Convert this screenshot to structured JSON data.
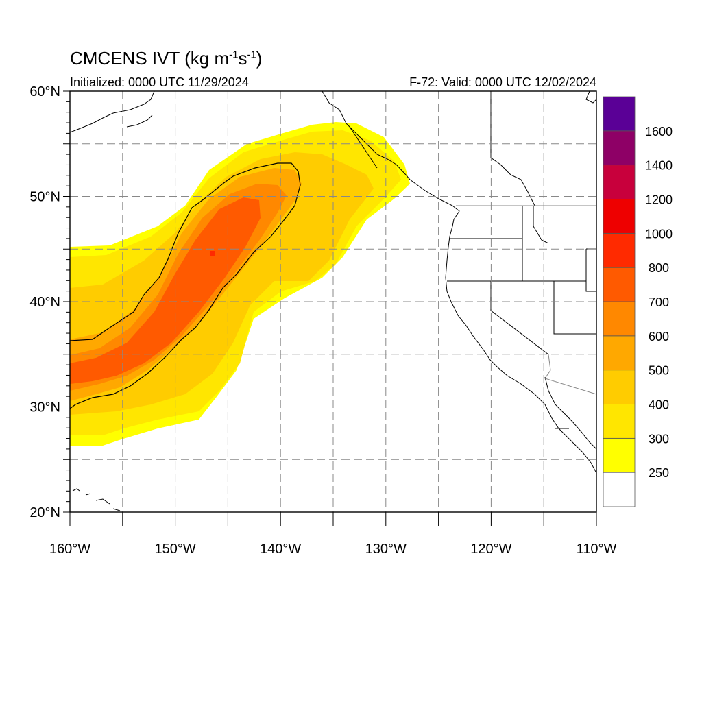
{
  "title": {
    "prefix": "CMCENS IVT (kg m",
    "sup1": "-1",
    "mid": "s",
    "sup2": "-1",
    "suffix": ")"
  },
  "subtitle_left": "Initialized: 0000 UTC 11/29/2024",
  "subtitle_right": "F-72: Valid: 0000 UTC 12/02/2024",
  "map": {
    "lon_range": [
      -160,
      -110
    ],
    "lat_range": [
      20,
      60
    ],
    "lat_ticks": [
      {
        "value": 20,
        "label": "20°N"
      },
      {
        "value": 30,
        "label": "30°N"
      },
      {
        "value": 40,
        "label": "40°N"
      },
      {
        "value": 50,
        "label": "50°N"
      },
      {
        "value": 60,
        "label": "60°N"
      }
    ],
    "lon_ticks": [
      {
        "value": -160,
        "label": "160°W"
      },
      {
        "value": -150,
        "label": "150°W"
      },
      {
        "value": -140,
        "label": "140°W"
      },
      {
        "value": -130,
        "label": "130°W"
      },
      {
        "value": -120,
        "label": "120°W"
      },
      {
        "value": -110,
        "label": "110°W"
      }
    ],
    "grid": "dashed, every 5 degrees"
  },
  "colorbar": {
    "levels": [
      250,
      300,
      400,
      500,
      600,
      700,
      800,
      1000,
      1200,
      1400,
      1600
    ],
    "colors": [
      "#ffffff",
      "#ffff00",
      "#ffe600",
      "#ffcc00",
      "#ffa800",
      "#ff8800",
      "#ff5a00",
      "#ff2a00",
      "#ee0000",
      "#c8003c",
      "#8e0066",
      "#5a0096"
    ]
  },
  "colors": {
    "ivt_250": "#ffff00",
    "ivt_300": "#ffe600",
    "ivt_400": "#ffcc00",
    "ivt_500": "#ffa800",
    "ivt_600": "#ff8800",
    "ivt_700": "#ff5a00",
    "ivt_800": "#ff2a00"
  }
}
